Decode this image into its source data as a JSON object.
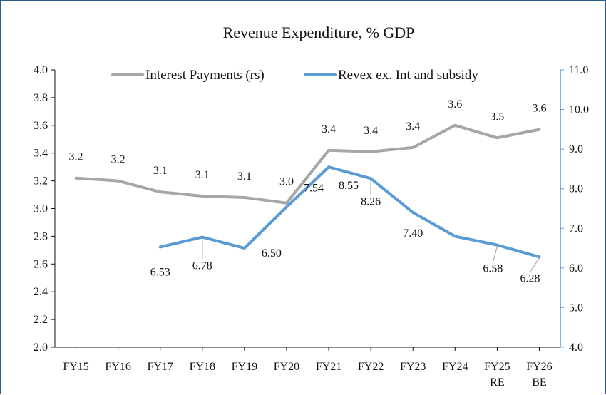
{
  "chart_data": {
    "type": "line",
    "title": "Revenue  Expenditure,  % GDP",
    "categories": [
      [
        "FY15"
      ],
      [
        "FY16"
      ],
      [
        "FY17"
      ],
      [
        "FY18"
      ],
      [
        "FY19"
      ],
      [
        "FY20"
      ],
      [
        "FY21"
      ],
      [
        "FY22"
      ],
      [
        "FY23"
      ],
      [
        "FY24"
      ],
      [
        "FY25",
        "RE"
      ],
      [
        "FY26",
        "BE"
      ]
    ],
    "y_left": {
      "min": 2.0,
      "max": 4.0,
      "step": 0.2,
      "decimals": 1
    },
    "y_right": {
      "min": 4.0,
      "max": 11.0,
      "step": 1.0,
      "decimals": 1
    },
    "series": [
      {
        "name": "Interest Payments (rs)",
        "axis": "left",
        "color": "#a6a6a6",
        "values": [
          3.22,
          3.2,
          3.12,
          3.09,
          3.08,
          3.04,
          3.42,
          3.41,
          3.44,
          3.6,
          3.51,
          3.57
        ],
        "labels": [
          "3.2",
          "3.2",
          "3.1",
          "3.1",
          "3.1",
          "3.0",
          "3.4",
          "3.4",
          "3.4",
          "3.6",
          "3.5",
          "3.6"
        ]
      },
      {
        "name": "Revex ex. Int and subsidy",
        "axis": "right",
        "color": "#5b9bd5",
        "values": [
          null,
          null,
          6.53,
          6.78,
          6.5,
          7.54,
          8.55,
          8.26,
          7.4,
          6.8,
          6.58,
          6.28
        ],
        "labels": [
          null,
          null,
          "6.53",
          "6.78",
          "6.50",
          "7.54",
          "8.55",
          "8.26",
          "7.40",
          null,
          "6.58",
          "6.28"
        ]
      }
    ],
    "legend": "top-center",
    "grid": false
  }
}
